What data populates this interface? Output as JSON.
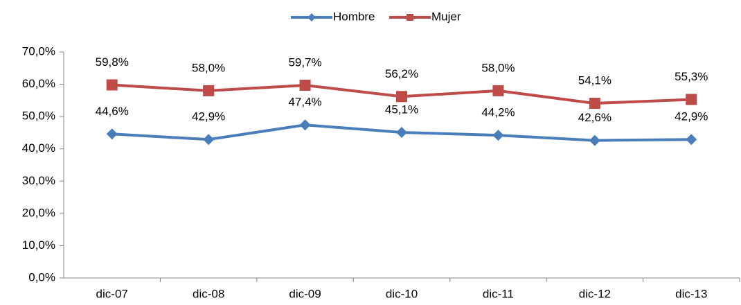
{
  "chart_data": {
    "type": "line",
    "categories": [
      "dic-07",
      "dic-08",
      "dic-09",
      "dic-10",
      "dic-11",
      "dic-12",
      "dic-13"
    ],
    "series": [
      {
        "name": "Hombre",
        "color": "#4a7ebb",
        "marker": "diamond",
        "values": [
          44.6,
          42.9,
          47.4,
          45.1,
          44.2,
          42.6,
          42.9
        ],
        "value_labels": [
          "44,6%",
          "42,9%",
          "47,4%",
          "45,1%",
          "44,2%",
          "42,6%",
          "42,9%"
        ]
      },
      {
        "name": "Mujer",
        "color": "#be4b48",
        "marker": "square",
        "values": [
          59.8,
          58.0,
          59.7,
          56.2,
          58.0,
          54.1,
          55.3
        ],
        "value_labels": [
          "59,8%",
          "58,0%",
          "59,7%",
          "56,2%",
          "58,0%",
          "54,1%",
          "55,3%"
        ]
      }
    ],
    "ylim": [
      0,
      70
    ],
    "yticks": [
      {
        "value": 0,
        "label": "0,0%"
      },
      {
        "value": 10,
        "label": "10,0%"
      },
      {
        "value": 20,
        "label": "20,0%"
      },
      {
        "value": 30,
        "label": "30,0%"
      },
      {
        "value": 40,
        "label": "40,0%"
      },
      {
        "value": 50,
        "label": "50,0%"
      },
      {
        "value": 60,
        "label": "60,0%"
      },
      {
        "value": 70,
        "label": "70,0%"
      }
    ],
    "grid": false,
    "legend": "top"
  }
}
